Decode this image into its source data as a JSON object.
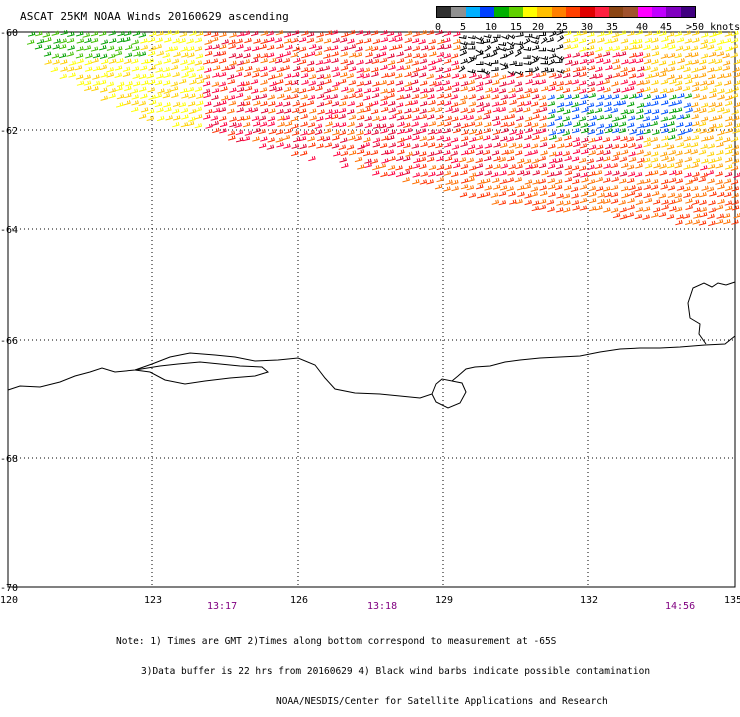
{
  "title": "ASCAT 25KM NOAA Winds 20160629 ascending",
  "legend": {
    "labels": [
      "0",
      "5",
      "10",
      "15",
      "20",
      "25",
      "30",
      "35",
      "40",
      "45"
    ],
    "unit_label": ">50 knots",
    "colors": [
      "#303030",
      "#909090",
      "#00b0ff",
      "#0040ff",
      "#00b000",
      "#60d000",
      "#ffff00",
      "#ffc000",
      "#ff8000",
      "#ff4000",
      "#e00000",
      "#ff2040",
      "#8b4513",
      "#a0522d",
      "#ff00ff",
      "#c000ff",
      "#8000c0",
      "#400080"
    ]
  },
  "axes": {
    "lon_ticks": [
      "120",
      "123",
      "126",
      "129",
      "132",
      "135"
    ],
    "lat_ticks": [
      "-60",
      "-62",
      "-64",
      "-66",
      "-68",
      "-70"
    ]
  },
  "times": [
    "13:17",
    "13:18",
    "14:56"
  ],
  "notes": {
    "line1": "Note: 1) Times are GMT 2)Times along bottom correspond to measurement at -65S",
    "line2": "3)Data buffer is 22 hrs from 20160629 4) Black wind barbs indicate possible contamination",
    "line3": "NOAA/NESDIS/Center for Satellite Applications and Research"
  },
  "colors": {
    "barb_palette": [
      "#00a000",
      "#40c000",
      "#ffff00",
      "#ffd000",
      "#ffa000",
      "#ff7000",
      "#ff3000",
      "#ff0040",
      "#e00030",
      "#0050ff",
      "#000000"
    ],
    "coast": "#000000",
    "grid": "#000000",
    "time_label": "#800080"
  }
}
